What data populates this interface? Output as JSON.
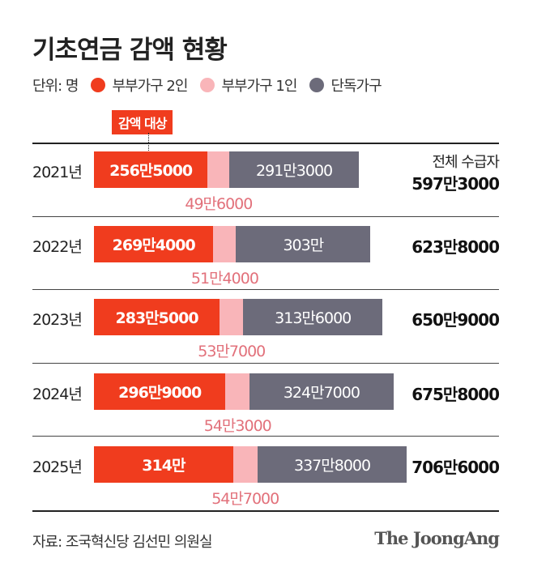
{
  "chart_data": {
    "type": "stacked-bar-horizontal",
    "title": "기초연금 감액 현황",
    "unit_label": "단위: 명",
    "highlight_label": "감액 대상",
    "total_header": "전체 수급자",
    "colors": {
      "couple2": "#f03c1e",
      "couple1": "#f9b5b9",
      "single": "#6c6b7a"
    },
    "legend": [
      "부부가구 2인",
      "부부가구 1인",
      "단독가구"
    ],
    "categories": [
      "2021년",
      "2022년",
      "2023년",
      "2024년",
      "2025년"
    ],
    "series": [
      {
        "name": "부부가구 2인",
        "values": [
          2565000,
          2694000,
          2835000,
          2969000,
          3140000
        ],
        "labels": [
          "256만5000",
          "269만4000",
          "283만5000",
          "296만9000",
          "314만"
        ]
      },
      {
        "name": "부부가구 1인",
        "values": [
          496000,
          514000,
          537000,
          543000,
          547000
        ],
        "labels": [
          "49만6000",
          "51만4000",
          "53만7000",
          "54만3000",
          "54만7000"
        ]
      },
      {
        "name": "단독가구",
        "values": [
          2913000,
          3030000,
          3136000,
          3247000,
          3378000
        ],
        "labels": [
          "291만3000",
          "303만",
          "313만6000",
          "324만7000",
          "337만8000"
        ]
      }
    ],
    "totals": [
      "597만3000",
      "623만8000",
      "650만9000",
      "675만8000",
      "706만6000"
    ]
  },
  "source": "자료: 조국혁신당 김선민 의원실",
  "logo": "The JoongAng"
}
